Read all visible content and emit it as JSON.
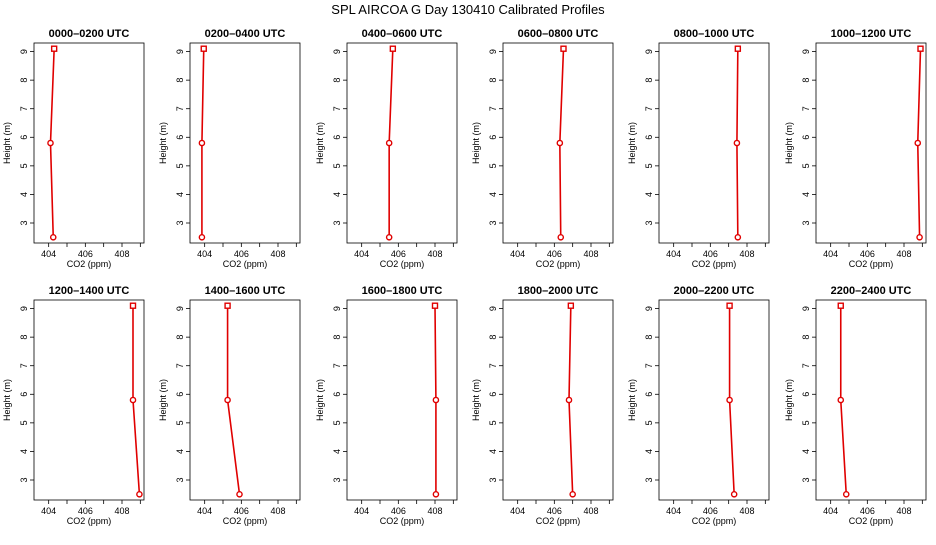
{
  "title": "SPL AIRCOA G  Day 130410  Calibrated Profiles",
  "colors": {
    "series": "#e00000",
    "axis": "#000000",
    "background": "#ffffff"
  },
  "chart_data": [
    {
      "type": "line",
      "title": "0000–0200 UTC",
      "xlabel": "CO2 (ppm)",
      "ylabel": "Height (m)",
      "xlim": [
        403.2,
        409.2
      ],
      "ylim": [
        2.3,
        9.3
      ],
      "xticks": [
        404,
        405,
        406,
        407,
        408,
        409
      ],
      "xtick_labels": [
        "404",
        "",
        "406",
        "",
        "408",
        ""
      ],
      "yticks": [
        3,
        4,
        5,
        6,
        7,
        8,
        9
      ],
      "points": [
        {
          "x": 404.25,
          "y": 2.5
        },
        {
          "x": 404.1,
          "y": 5.8
        },
        {
          "x": 404.3,
          "y": 9.1
        }
      ]
    },
    {
      "type": "line",
      "title": "0200–0400 UTC",
      "xlabel": "CO2 (ppm)",
      "ylabel": "Height (m)",
      "xlim": [
        403.2,
        409.2
      ],
      "ylim": [
        2.3,
        9.3
      ],
      "xticks": [
        404,
        405,
        406,
        407,
        408,
        409
      ],
      "xtick_labels": [
        "404",
        "",
        "406",
        "",
        "408",
        ""
      ],
      "yticks": [
        3,
        4,
        5,
        6,
        7,
        8,
        9
      ],
      "points": [
        {
          "x": 403.85,
          "y": 2.5
        },
        {
          "x": 403.85,
          "y": 5.8
        },
        {
          "x": 403.95,
          "y": 9.1
        }
      ]
    },
    {
      "type": "line",
      "title": "0400–0600 UTC",
      "xlabel": "CO2 (ppm)",
      "ylabel": "Height (m)",
      "xlim": [
        403.2,
        409.2
      ],
      "ylim": [
        2.3,
        9.3
      ],
      "xticks": [
        404,
        405,
        406,
        407,
        408,
        409
      ],
      "xtick_labels": [
        "404",
        "",
        "406",
        "",
        "408",
        ""
      ],
      "yticks": [
        3,
        4,
        5,
        6,
        7,
        8,
        9
      ],
      "points": [
        {
          "x": 405.5,
          "y": 2.5
        },
        {
          "x": 405.5,
          "y": 5.8
        },
        {
          "x": 405.7,
          "y": 9.1
        }
      ]
    },
    {
      "type": "line",
      "title": "0600–0800 UTC",
      "xlabel": "CO2 (ppm)",
      "ylabel": "Height (m)",
      "xlim": [
        403.2,
        409.2
      ],
      "ylim": [
        2.3,
        9.3
      ],
      "xticks": [
        404,
        405,
        406,
        407,
        408,
        409
      ],
      "xtick_labels": [
        "404",
        "",
        "406",
        "",
        "408",
        ""
      ],
      "yticks": [
        3,
        4,
        5,
        6,
        7,
        8,
        9
      ],
      "points": [
        {
          "x": 406.35,
          "y": 2.5
        },
        {
          "x": 406.3,
          "y": 5.8
        },
        {
          "x": 406.5,
          "y": 9.1
        }
      ]
    },
    {
      "type": "line",
      "title": "0800–1000 UTC",
      "xlabel": "CO2 (ppm)",
      "ylabel": "Height (m)",
      "xlim": [
        403.2,
        409.2
      ],
      "ylim": [
        2.3,
        9.3
      ],
      "xticks": [
        404,
        405,
        406,
        407,
        408,
        409
      ],
      "xtick_labels": [
        "404",
        "",
        "406",
        "",
        "408",
        ""
      ],
      "yticks": [
        3,
        4,
        5,
        6,
        7,
        8,
        9
      ],
      "points": [
        {
          "x": 407.5,
          "y": 2.5
        },
        {
          "x": 407.45,
          "y": 5.8
        },
        {
          "x": 407.5,
          "y": 9.1
        }
      ]
    },
    {
      "type": "line",
      "title": "1000–1200 UTC",
      "xlabel": "CO2 (ppm)",
      "ylabel": "Height (m)",
      "xlim": [
        403.2,
        409.2
      ],
      "ylim": [
        2.3,
        9.3
      ],
      "xticks": [
        404,
        405,
        406,
        407,
        408,
        409
      ],
      "xtick_labels": [
        "404",
        "",
        "406",
        "",
        "408",
        ""
      ],
      "yticks": [
        3,
        4,
        5,
        6,
        7,
        8,
        9
      ],
      "points": [
        {
          "x": 408.85,
          "y": 2.5
        },
        {
          "x": 408.75,
          "y": 5.8
        },
        {
          "x": 408.9,
          "y": 9.1
        }
      ]
    },
    {
      "type": "line",
      "title": "1200–1400 UTC",
      "xlabel": "CO2 (ppm)",
      "ylabel": "Height (m)",
      "xlim": [
        403.2,
        409.2
      ],
      "ylim": [
        2.3,
        9.3
      ],
      "xticks": [
        404,
        405,
        406,
        407,
        408,
        409
      ],
      "xtick_labels": [
        "404",
        "",
        "406",
        "",
        "408",
        ""
      ],
      "yticks": [
        3,
        4,
        5,
        6,
        7,
        8,
        9
      ],
      "points": [
        {
          "x": 408.95,
          "y": 2.5
        },
        {
          "x": 408.6,
          "y": 5.8
        },
        {
          "x": 408.6,
          "y": 9.1
        }
      ]
    },
    {
      "type": "line",
      "title": "1400–1600 UTC",
      "xlabel": "CO2 (ppm)",
      "ylabel": "Height (m)",
      "xlim": [
        403.2,
        409.2
      ],
      "ylim": [
        2.3,
        9.3
      ],
      "xticks": [
        404,
        405,
        406,
        407,
        408,
        409
      ],
      "xtick_labels": [
        "404",
        "",
        "406",
        "",
        "408",
        ""
      ],
      "yticks": [
        3,
        4,
        5,
        6,
        7,
        8,
        9
      ],
      "points": [
        {
          "x": 405.9,
          "y": 2.5
        },
        {
          "x": 405.25,
          "y": 5.8
        },
        {
          "x": 405.25,
          "y": 9.1
        }
      ]
    },
    {
      "type": "line",
      "title": "1600–1800 UTC",
      "xlabel": "CO2 (ppm)",
      "ylabel": "Height (m)",
      "xlim": [
        403.2,
        409.2
      ],
      "ylim": [
        2.3,
        9.3
      ],
      "xticks": [
        404,
        405,
        406,
        407,
        408,
        409
      ],
      "xtick_labels": [
        "404",
        "",
        "406",
        "",
        "408",
        ""
      ],
      "yticks": [
        3,
        4,
        5,
        6,
        7,
        8,
        9
      ],
      "points": [
        {
          "x": 408.05,
          "y": 2.5
        },
        {
          "x": 408.05,
          "y": 5.8
        },
        {
          "x": 408.0,
          "y": 9.1
        }
      ]
    },
    {
      "type": "line",
      "title": "1800–2000 UTC",
      "xlabel": "CO2 (ppm)",
      "ylabel": "Height (m)",
      "xlim": [
        403.2,
        409.2
      ],
      "ylim": [
        2.3,
        9.3
      ],
      "xticks": [
        404,
        405,
        406,
        407,
        408,
        409
      ],
      "xtick_labels": [
        "404",
        "",
        "406",
        "",
        "408",
        ""
      ],
      "yticks": [
        3,
        4,
        5,
        6,
        7,
        8,
        9
      ],
      "points": [
        {
          "x": 407.0,
          "y": 2.5
        },
        {
          "x": 406.8,
          "y": 5.8
        },
        {
          "x": 406.9,
          "y": 9.1
        }
      ]
    },
    {
      "type": "line",
      "title": "2000–2200 UTC",
      "xlabel": "CO2 (ppm)",
      "ylabel": "Height (m)",
      "xlim": [
        403.2,
        409.2
      ],
      "ylim": [
        2.3,
        9.3
      ],
      "xticks": [
        404,
        405,
        406,
        407,
        408,
        409
      ],
      "xtick_labels": [
        "404",
        "",
        "406",
        "",
        "408",
        ""
      ],
      "yticks": [
        3,
        4,
        5,
        6,
        7,
        8,
        9
      ],
      "points": [
        {
          "x": 407.3,
          "y": 2.5
        },
        {
          "x": 407.05,
          "y": 5.8
        },
        {
          "x": 407.05,
          "y": 9.1
        }
      ]
    },
    {
      "type": "line",
      "title": "2200–2400 UTC",
      "xlabel": "CO2 (ppm)",
      "ylabel": "Height (m)",
      "xlim": [
        403.2,
        409.2
      ],
      "ylim": [
        2.3,
        9.3
      ],
      "xticks": [
        404,
        405,
        406,
        407,
        408,
        409
      ],
      "xtick_labels": [
        "404",
        "",
        "406",
        "",
        "408",
        ""
      ],
      "yticks": [
        3,
        4,
        5,
        6,
        7,
        8,
        9
      ],
      "points": [
        {
          "x": 404.85,
          "y": 2.5
        },
        {
          "x": 404.55,
          "y": 5.8
        },
        {
          "x": 404.55,
          "y": 9.1
        }
      ]
    }
  ]
}
